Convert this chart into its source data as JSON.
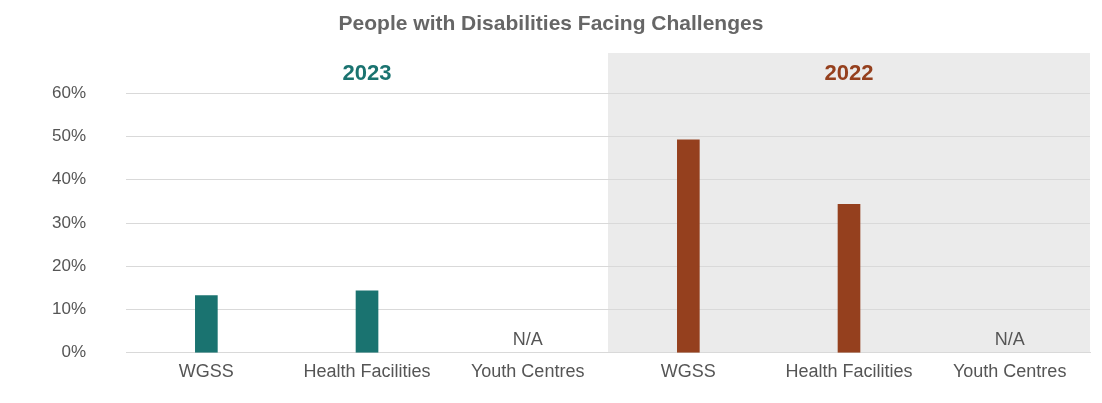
{
  "chart_data": {
    "type": "bar",
    "title": "People with Disabilities Facing Challenges",
    "categories": [
      "WGSS",
      "Health Facilities",
      "Youth Centres",
      "WGSS",
      "Health Facilities",
      "Youth Centres"
    ],
    "series": [
      {
        "name": "2023",
        "color": "#1a7370",
        "values": [
          13.2,
          14.3,
          null,
          null,
          null,
          null
        ],
        "value_labels": [
          null,
          null,
          "N/A",
          null,
          null,
          null
        ]
      },
      {
        "name": "2022",
        "color": "#95401e",
        "values": [
          null,
          null,
          null,
          49.2,
          34.3,
          null
        ],
        "value_labels": [
          null,
          null,
          null,
          null,
          null,
          "N/A"
        ]
      }
    ],
    "ylim": [
      0,
      60
    ],
    "yticks": [
      {
        "value": 0,
        "label": "0%"
      },
      {
        "value": 10,
        "label": "10%"
      },
      {
        "value": 20,
        "label": "20%"
      },
      {
        "value": 30,
        "label": "30%"
      },
      {
        "value": 40,
        "label": "40%"
      },
      {
        "value": 50,
        "label": "50%"
      },
      {
        "value": 60,
        "label": "60%"
      }
    ],
    "grid": "y",
    "legend": false
  }
}
